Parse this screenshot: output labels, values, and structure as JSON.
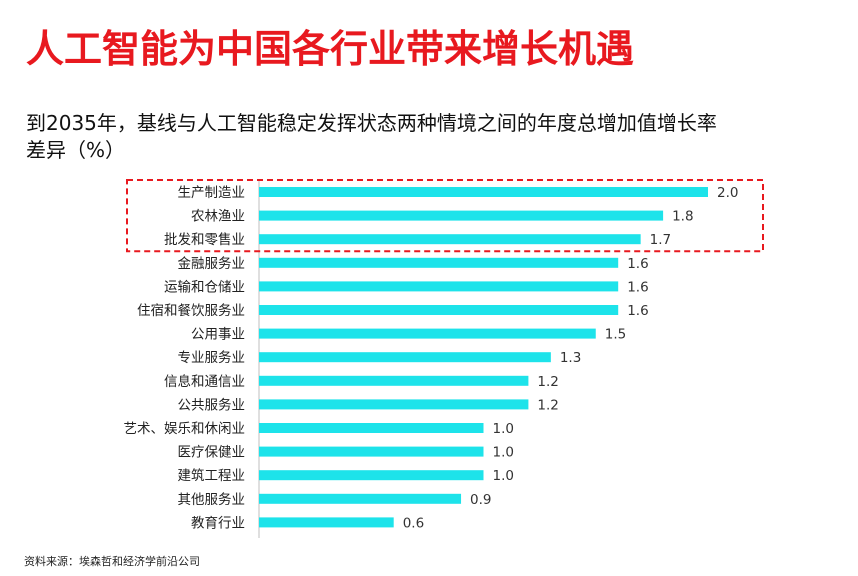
{
  "header": {
    "title": "人工智能为中国各行业带来增长机遇",
    "subtitle": "到2035年，基线与人工智能稳定发挥状态两种情境之间的年度总增加值增长率差异（%）"
  },
  "chart_data": {
    "type": "bar",
    "orientation": "horizontal",
    "title": "到2035年，基线与人工智能稳定发挥状态两种情境之间的年度总增加值增长率差异（%）",
    "categories": [
      "生产制造业",
      "农林渔业",
      "批发和零售业",
      "金融服务业",
      "运输和仓储业",
      "住宿和餐饮服务业",
      "公用事业",
      "专业服务业",
      "信息和通信业",
      "公共服务业",
      "艺术、娱乐和休闲业",
      "医疗保健业",
      "建筑工程业",
      "其他服务业",
      "教育行业"
    ],
    "values": [
      2.0,
      1.8,
      1.7,
      1.6,
      1.6,
      1.6,
      1.5,
      1.3,
      1.2,
      1.2,
      1.0,
      1.0,
      1.0,
      0.9,
      0.6
    ],
    "data_labels": [
      "2.0",
      "1.8",
      "1.7",
      "1.6",
      "1.6",
      "1.6",
      "1.5",
      "1.3",
      "1.2",
      "1.2",
      "1.0",
      "1.0",
      "1.0",
      "0.9",
      "0.6"
    ],
    "xlim": [
      0,
      2.0
    ],
    "highlighted_categories": [
      "生产制造业",
      "农林渔业",
      "批发和零售业"
    ],
    "bar_color": "#1de3ea",
    "highlight_box_color": "#e8191f",
    "grid": false,
    "legend": "none"
  },
  "footer": {
    "source": "资料来源：埃森哲和经济学前沿公司"
  },
  "colors": {
    "title": "#e8191f",
    "bar": "#1de3ea",
    "highlight_box": "#e8191f"
  }
}
